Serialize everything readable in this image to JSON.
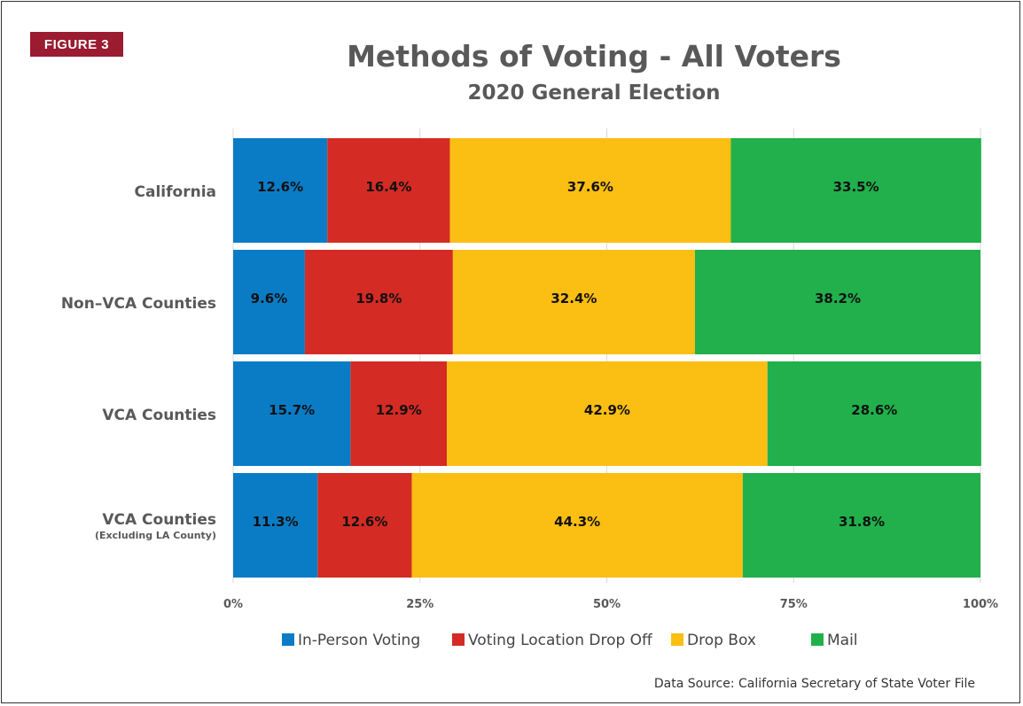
{
  "figure_label": "FIGURE 3",
  "source": "Data Source: California Secretary of State Voter File",
  "chart_data": {
    "type": "bar",
    "orientation": "horizontal",
    "stacked": true,
    "title": "Methods of Voting - All Voters",
    "subtitle": "2020 General Election",
    "categories": [
      {
        "label": "California",
        "sublabel": ""
      },
      {
        "label": "Non–VCA Counties",
        "sublabel": ""
      },
      {
        "label": "VCA Counties",
        "sublabel": ""
      },
      {
        "label": "VCA Counties",
        "sublabel": "(Excluding LA County)"
      }
    ],
    "series": [
      {
        "name": "In-Person Voting",
        "color": "#0a7cc6",
        "values": [
          12.6,
          9.6,
          15.7,
          11.3
        ],
        "labels": [
          "12.6%",
          "9.6%",
          "15.7%",
          "11.3%"
        ]
      },
      {
        "name": "Voting Location Drop Off",
        "color": "#d42b24",
        "values": [
          16.4,
          19.8,
          12.9,
          12.6
        ],
        "labels": [
          "16.4%",
          "19.8%",
          "12.9%",
          "12.6%"
        ]
      },
      {
        "name": "Drop Box",
        "color": "#fbbe12",
        "values": [
          37.6,
          32.4,
          42.9,
          44.3
        ],
        "labels": [
          "37.6%",
          "32.4%",
          "42.9%",
          "44.3%"
        ]
      },
      {
        "name": "Mail",
        "color": "#21b04b",
        "values": [
          33.5,
          38.2,
          28.6,
          31.8
        ],
        "labels": [
          "33.5%",
          "38.2%",
          "28.6%",
          "31.8%"
        ]
      }
    ],
    "xlim": [
      0,
      100
    ],
    "xticks": [
      0,
      25,
      50,
      75,
      100
    ],
    "xtick_labels": [
      "0%",
      "25%",
      "50%",
      "75%",
      "100%"
    ],
    "grid": true,
    "legend_position": "bottom"
  }
}
